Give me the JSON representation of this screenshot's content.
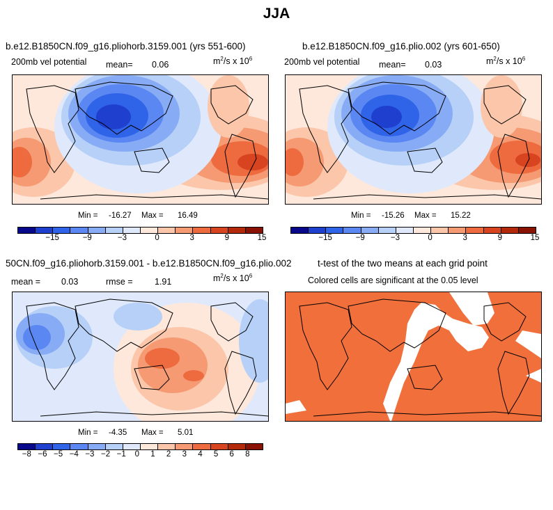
{
  "page_title": "JJA",
  "units": {
    "base": "m",
    "exp": "2",
    "mid": "/s x 10",
    "exp2": "6"
  },
  "variable_label": "200mb vel potential",
  "colors": {
    "diverging": [
      "#08088a",
      "#1f3fcf",
      "#2f63e8",
      "#5a87f2",
      "#87acf5",
      "#b7d0f7",
      "#dfe9fb",
      "#fde8db",
      "#fbc6aa",
      "#f59a72",
      "#ee6b40",
      "#d8441f",
      "#b22a0b",
      "#8a1203"
    ],
    "significant": "#f06f3b"
  },
  "chart_data": [
    {
      "type": "heatmap",
      "title": "b.e12.B1850CN.f09_g16.pliohorb.3159.001 (yrs 551-600)",
      "variable": "200mb vel potential",
      "mean_label": "mean=",
      "mean_value": "0.06",
      "min_label": "Min =",
      "min_value": "-16.27",
      "max_label": "Max =",
      "max_value": "16.49",
      "colorbar_ticks": [
        "−15",
        "−9",
        "−3",
        "0",
        "3",
        "9",
        "15"
      ],
      "pattern": {
        "west_value": -16.27,
        "east_value": 16.49
      }
    },
    {
      "type": "heatmap",
      "title": "b.e12.B1850CN.f09_g16.plio.002 (yrs 601-650)",
      "variable": "200mb vel potential",
      "mean_label": "mean=",
      "mean_value": "0.03",
      "min_label": "Min =",
      "min_value": "-15.26",
      "max_label": "Max =",
      "max_value": "15.22",
      "colorbar_ticks": [
        "−15",
        "−9",
        "−3",
        "0",
        "3",
        "9",
        "15"
      ],
      "pattern": {
        "west_value": -15.26,
        "east_value": 15.22
      }
    },
    {
      "type": "heatmap",
      "title": "50CN.f09_g16.pliohorb.3159.001 - b.e12.B1850CN.f09_g16.plio.002",
      "mean_label": "mean =",
      "mean_value": "0.03",
      "rmse_label": "rmse =",
      "rmse_value": "1.91",
      "min_label": "Min =",
      "min_value": "-4.35",
      "max_label": "Max =",
      "max_value": "5.01",
      "colorbar_ticks": [
        "−8",
        "−6",
        "−5",
        "−4",
        "−3",
        "−2",
        "−1",
        "0",
        "1",
        "2",
        "3",
        "4",
        "5",
        "6",
        "8"
      ]
    },
    {
      "type": "heatmap",
      "title": "t-test of the two means at each grid point",
      "subtitle": "Colored cells are significant at the 0.05 level"
    }
  ]
}
